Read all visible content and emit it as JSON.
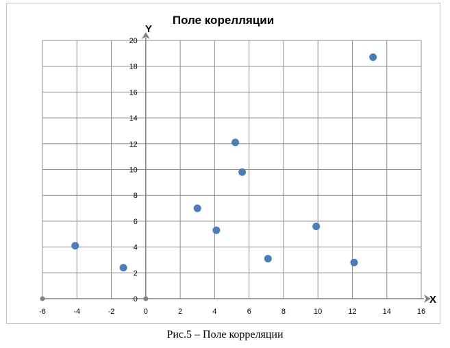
{
  "caption": "Рис.5 – Поле корреляции",
  "chart_data": {
    "type": "scatter",
    "title": "Поле корелляции",
    "xlabel": "X",
    "ylabel": "Y",
    "xlim": [
      -6,
      16
    ],
    "ylim": [
      0,
      20
    ],
    "x_ticks": [
      -6,
      -4,
      -2,
      0,
      2,
      4,
      6,
      8,
      10,
      12,
      14,
      16
    ],
    "y_ticks": [
      0,
      2,
      4,
      6,
      8,
      10,
      12,
      14,
      16,
      18,
      20
    ],
    "grid": true,
    "marker_color": "#4a7ebb",
    "origin_marker_color": "#808080",
    "series": [
      {
        "points": [
          {
            "x": -4.1,
            "y": 4.1
          },
          {
            "x": -1.3,
            "y": 2.4
          },
          {
            "x": 3.0,
            "y": 7.0
          },
          {
            "x": 4.1,
            "y": 5.3
          },
          {
            "x": 5.2,
            "y": 12.1
          },
          {
            "x": 5.6,
            "y": 9.8
          },
          {
            "x": 7.1,
            "y": 3.1
          },
          {
            "x": 9.9,
            "y": 5.6
          },
          {
            "x": 12.1,
            "y": 2.8
          },
          {
            "x": 13.2,
            "y": 18.7
          }
        ]
      }
    ],
    "origin_points": [
      {
        "x": -6,
        "y": 0
      },
      {
        "x": 0,
        "y": 0
      }
    ]
  }
}
